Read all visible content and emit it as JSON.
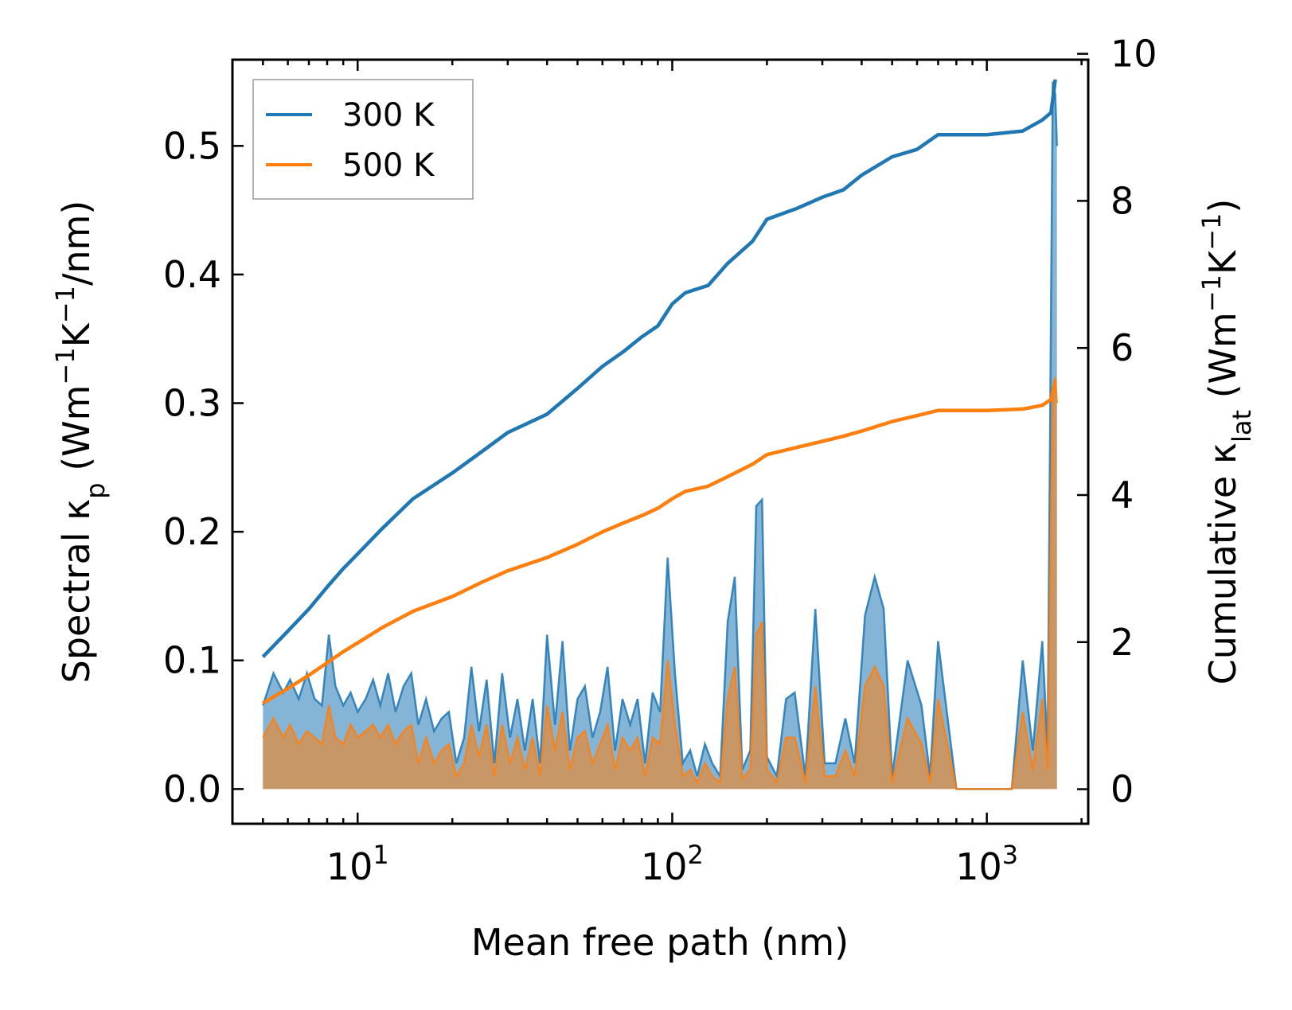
{
  "chart_data": {
    "type": "line",
    "x_scale": "log",
    "xlabel": "Mean free path (nm)",
    "ylabel_left": {
      "main": "Spectral κ",
      "sub": "p",
      "units_pre": " (Wm",
      "sup1": "−1",
      "units_mid": "K",
      "sup2": "−1",
      "units_post": "/nm)"
    },
    "ylabel_right": {
      "main": "Cumulative κ",
      "sub": "lat",
      "units_pre": " (Wm",
      "sup1": "−1",
      "units_mid": "K",
      "sup2": "−1",
      "units_post": ")"
    },
    "xlim": [
      4.0,
      2100
    ],
    "ylim_left": [
      -0.027,
      0.567
    ],
    "ylim_right": [
      -0.47,
      9.92
    ],
    "x_ticks": [
      {
        "value": 10,
        "base": "10",
        "exp": "1"
      },
      {
        "value": 100,
        "base": "10",
        "exp": "2"
      },
      {
        "value": 1000,
        "base": "10",
        "exp": "3"
      }
    ],
    "y_ticks_left": [
      "0.0",
      "0.1",
      "0.2",
      "0.3",
      "0.4",
      "0.5"
    ],
    "y_ticks_left_values": [
      0,
      0.1,
      0.2,
      0.3,
      0.4,
      0.5
    ],
    "y_ticks_right": [
      "0",
      "2",
      "4",
      "6",
      "8",
      "10"
    ],
    "y_ticks_right_values": [
      0,
      2,
      4,
      6,
      8,
      10
    ],
    "legend": {
      "position": "top-left",
      "entries": [
        {
          "label": "300 K",
          "color": "#1f77b4"
        },
        {
          "label": "500 K",
          "color": "#ff7f0e"
        }
      ]
    },
    "series": [
      {
        "name": "300 K",
        "color": "#1f77b4",
        "axis": "right",
        "kind": "cumulative",
        "x": [
          5,
          6,
          7,
          8,
          9,
          10,
          12,
          15,
          20,
          25,
          30,
          40,
          50,
          60,
          70,
          80,
          90,
          100,
          110,
          130,
          150,
          180,
          200,
          250,
          300,
          350,
          400,
          500,
          600,
          700,
          1000,
          1300,
          1500,
          1600,
          1650
        ],
        "y": [
          1.8,
          2.15,
          2.45,
          2.75,
          3.0,
          3.2,
          3.55,
          3.95,
          4.3,
          4.6,
          4.85,
          5.1,
          5.45,
          5.75,
          5.95,
          6.15,
          6.3,
          6.6,
          6.75,
          6.85,
          7.15,
          7.45,
          7.75,
          7.9,
          8.05,
          8.15,
          8.35,
          8.6,
          8.7,
          8.9,
          8.9,
          8.95,
          9.1,
          9.2,
          9.65
        ]
      },
      {
        "name": "500 K",
        "color": "#ff7f0e",
        "axis": "right",
        "kind": "cumulative",
        "x": [
          5,
          6,
          7,
          8,
          9,
          10,
          12,
          15,
          20,
          25,
          30,
          40,
          50,
          60,
          70,
          80,
          90,
          100,
          110,
          130,
          150,
          180,
          200,
          250,
          300,
          350,
          400,
          500,
          600,
          700,
          1000,
          1300,
          1500,
          1600,
          1650
        ],
        "y": [
          1.17,
          1.37,
          1.55,
          1.72,
          1.87,
          1.99,
          2.2,
          2.42,
          2.62,
          2.82,
          2.97,
          3.15,
          3.33,
          3.5,
          3.62,
          3.72,
          3.82,
          3.95,
          4.05,
          4.12,
          4.25,
          4.42,
          4.55,
          4.65,
          4.73,
          4.8,
          4.87,
          5.0,
          5.08,
          5.15,
          5.15,
          5.17,
          5.22,
          5.3,
          5.55
        ]
      },
      {
        "name": "300 K spectral",
        "color": "#1f77b4",
        "axis": "left",
        "kind": "spectral",
        "x": [
          5,
          5.4,
          5.8,
          6.1,
          6.5,
          6.9,
          7.3,
          7.7,
          8.1,
          8.5,
          9,
          9.5,
          10,
          10.6,
          11.2,
          11.8,
          12.5,
          13.2,
          14,
          14.8,
          15.6,
          16.5,
          17.5,
          18.5,
          19.5,
          20.6,
          21.8,
          23,
          24.3,
          25.7,
          27.2,
          28.8,
          30.5,
          32.2,
          34,
          36,
          38,
          40,
          42.4,
          44.8,
          47.3,
          50,
          52.8,
          55.8,
          59,
          62.3,
          65.8,
          69.5,
          73.5,
          77.6,
          82,
          86.6,
          91.5,
          96.7,
          102,
          108,
          114,
          120,
          127,
          134,
          142,
          150,
          158,
          167,
          177,
          185,
          193,
          200,
          215,
          230,
          245,
          265,
          285,
          305,
          330,
          355,
          380,
          410,
          440,
          470,
          500,
          560,
          620,
          660,
          700,
          800,
          1000,
          1200,
          1300,
          1400,
          1500,
          1560,
          1620,
          1650,
          1670
        ],
        "y": [
          0.065,
          0.09,
          0.075,
          0.085,
          0.07,
          0.09,
          0.07,
          0.065,
          0.12,
          0.08,
          0.065,
          0.075,
          0.06,
          0.07,
          0.085,
          0.065,
          0.09,
          0.06,
          0.08,
          0.09,
          0.05,
          0.07,
          0.045,
          0.055,
          0.06,
          0.02,
          0.04,
          0.095,
          0.045,
          0.085,
          0.02,
          0.09,
          0.04,
          0.07,
          0.03,
          0.07,
          0.02,
          0.12,
          0.05,
          0.115,
          0.03,
          0.07,
          0.08,
          0.04,
          0.06,
          0.095,
          0.03,
          0.07,
          0.05,
          0.07,
          0.02,
          0.075,
          0.06,
          0.18,
          0.09,
          0.02,
          0.03,
          0.01,
          0.035,
          0.02,
          0.01,
          0.13,
          0.165,
          0.015,
          0.03,
          0.22,
          0.225,
          0.025,
          0.01,
          0.07,
          0.075,
          0.01,
          0.14,
          0.02,
          0.02,
          0.055,
          0.02,
          0.135,
          0.165,
          0.14,
          0.01,
          0.1,
          0.065,
          0.01,
          0.115,
          0.0,
          0.0,
          0.0,
          0.1,
          0.03,
          0.115,
          0.03,
          0.55,
          0.54,
          0.5
        ]
      },
      {
        "name": "500 K spectral",
        "color": "#ff7f0e",
        "axis": "left",
        "kind": "spectral",
        "x": [
          5,
          5.4,
          5.8,
          6.1,
          6.5,
          6.9,
          7.3,
          7.7,
          8.1,
          8.5,
          9,
          9.5,
          10,
          10.6,
          11.2,
          11.8,
          12.5,
          13.2,
          14,
          14.8,
          15.6,
          16.5,
          17.5,
          18.5,
          19.5,
          20.6,
          21.8,
          23,
          24.3,
          25.7,
          27.2,
          28.8,
          30.5,
          32.2,
          34,
          36,
          38,
          40,
          42.4,
          44.8,
          47.3,
          50,
          52.8,
          55.8,
          59,
          62.3,
          65.8,
          69.5,
          73.5,
          77.6,
          82,
          86.6,
          91.5,
          96.7,
          102,
          108,
          114,
          120,
          127,
          134,
          142,
          150,
          158,
          167,
          177,
          185,
          193,
          200,
          215,
          230,
          245,
          265,
          285,
          305,
          330,
          355,
          380,
          410,
          440,
          470,
          500,
          560,
          620,
          660,
          700,
          800,
          1000,
          1200,
          1300,
          1400,
          1500,
          1560,
          1620,
          1650,
          1670
        ],
        "y": [
          0.04,
          0.055,
          0.04,
          0.05,
          0.035,
          0.045,
          0.04,
          0.035,
          0.065,
          0.04,
          0.035,
          0.05,
          0.04,
          0.045,
          0.05,
          0.04,
          0.05,
          0.035,
          0.045,
          0.05,
          0.02,
          0.04,
          0.02,
          0.03,
          0.035,
          0.01,
          0.02,
          0.05,
          0.025,
          0.05,
          0.01,
          0.05,
          0.02,
          0.04,
          0.015,
          0.04,
          0.01,
          0.065,
          0.03,
          0.06,
          0.015,
          0.04,
          0.045,
          0.02,
          0.035,
          0.05,
          0.015,
          0.04,
          0.03,
          0.04,
          0.01,
          0.04,
          0.035,
          0.1,
          0.05,
          0.01,
          0.015,
          0.005,
          0.02,
          0.01,
          0.005,
          0.07,
          0.095,
          0.008,
          0.015,
          0.12,
          0.13,
          0.015,
          0.005,
          0.04,
          0.04,
          0.005,
          0.08,
          0.01,
          0.01,
          0.03,
          0.01,
          0.08,
          0.095,
          0.08,
          0.005,
          0.055,
          0.035,
          0.005,
          0.07,
          0.0,
          0.0,
          0.0,
          0.06,
          0.015,
          0.07,
          0.015,
          0.31,
          0.32,
          0.3
        ]
      }
    ]
  }
}
